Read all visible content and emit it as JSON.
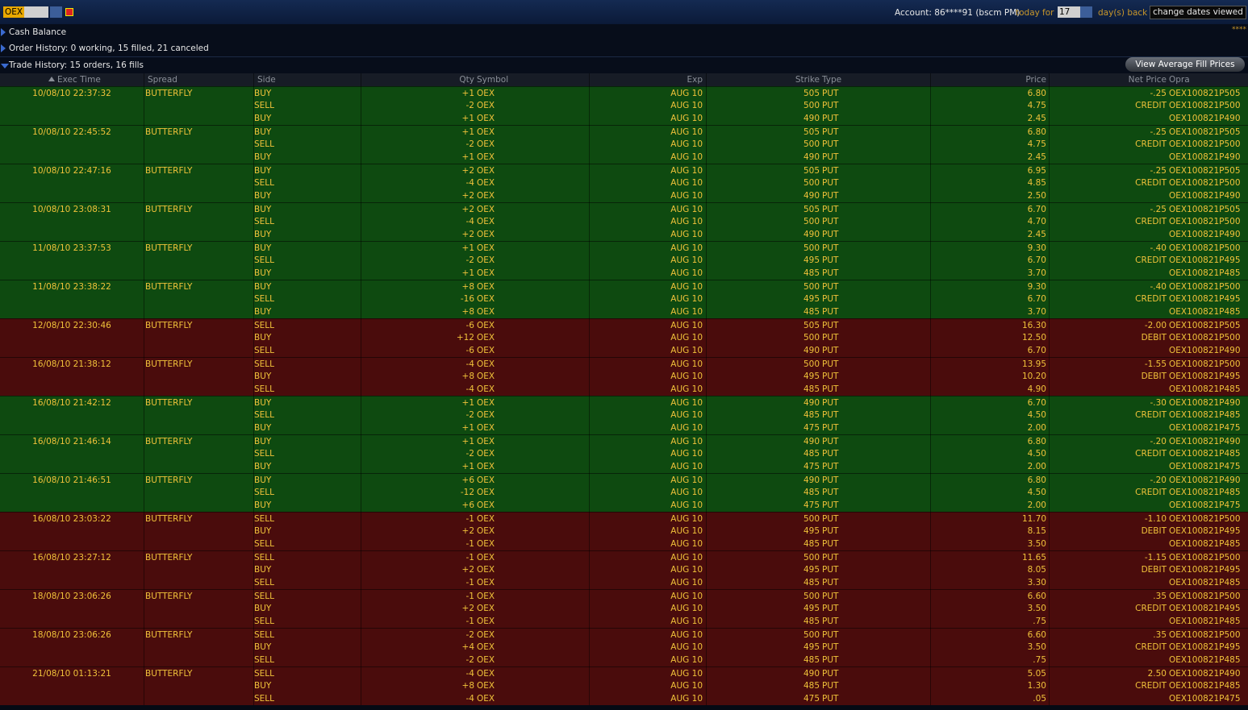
{
  "toolbar": {
    "symbol": "OEX",
    "account": "Account: 86****91 (bscm PM)",
    "today": "today",
    "for": "for",
    "days": "17",
    "days_back": "day(s) back",
    "change_dates": "change dates viewed"
  },
  "sections": {
    "cash_balance": "Cash Balance",
    "cash_mask": "****",
    "order_history": "Order History: 0 working, 15 filled, 21 canceled",
    "trade_history": "Trade History: 15 orders, 16 fills",
    "avg_button": "View Average Fill Prices"
  },
  "table": {
    "headers": {
      "time": "Exec Time",
      "spread": "Spread",
      "side": "Side",
      "qty": "Qty",
      "sym": "Symbol",
      "exp": "Exp",
      "strike": "Strike",
      "type": "Type",
      "price": "Price",
      "net": "Net Price",
      "opra": "Opra"
    },
    "orders": [
      {
        "time": "10/08/10 22:37:32",
        "spread": "BUTTERFLY",
        "color": "#0e4a10",
        "legs": [
          {
            "side": "BUY",
            "qty": "+1",
            "sym": "OEX",
            "exp": "AUG 10",
            "strike": "505",
            "type": "PUT",
            "price": "6.80",
            "net": "-.25",
            "opra": "OEX100821P505"
          },
          {
            "side": "SELL",
            "qty": "-2",
            "sym": "OEX",
            "exp": "AUG 10",
            "strike": "500",
            "type": "PUT",
            "price": "4.75",
            "net": "CREDIT",
            "opra": "OEX100821P500"
          },
          {
            "side": "BUY",
            "qty": "+1",
            "sym": "OEX",
            "exp": "AUG 10",
            "strike": "490",
            "type": "PUT",
            "price": "2.45",
            "opra": "OEX100821P490"
          }
        ]
      },
      {
        "time": "10/08/10 22:45:52",
        "spread": "BUTTERFLY",
        "color": "#0e4a10",
        "legs": [
          {
            "side": "BUY",
            "qty": "+1",
            "sym": "OEX",
            "exp": "AUG 10",
            "strike": "505",
            "type": "PUT",
            "price": "6.80",
            "net": "-.25",
            "opra": "OEX100821P505"
          },
          {
            "side": "SELL",
            "qty": "-2",
            "sym": "OEX",
            "exp": "AUG 10",
            "strike": "500",
            "type": "PUT",
            "price": "4.75",
            "net": "CREDIT",
            "opra": "OEX100821P500"
          },
          {
            "side": "BUY",
            "qty": "+1",
            "sym": "OEX",
            "exp": "AUG 10",
            "strike": "490",
            "type": "PUT",
            "price": "2.45",
            "opra": "OEX100821P490"
          }
        ]
      },
      {
        "time": "10/08/10 22:47:16",
        "spread": "BUTTERFLY",
        "color": "#0e4a10",
        "legs": [
          {
            "side": "BUY",
            "qty": "+2",
            "sym": "OEX",
            "exp": "AUG 10",
            "strike": "505",
            "type": "PUT",
            "price": "6.95",
            "net": "-.25",
            "opra": "OEX100821P505"
          },
          {
            "side": "SELL",
            "qty": "-4",
            "sym": "OEX",
            "exp": "AUG 10",
            "strike": "500",
            "type": "PUT",
            "price": "4.85",
            "net": "CREDIT",
            "opra": "OEX100821P500"
          },
          {
            "side": "BUY",
            "qty": "+2",
            "sym": "OEX",
            "exp": "AUG 10",
            "strike": "490",
            "type": "PUT",
            "price": "2.50",
            "opra": "OEX100821P490"
          }
        ]
      },
      {
        "time": "10/08/10 23:08:31",
        "spread": "BUTTERFLY",
        "color": "#0e4a10",
        "legs": [
          {
            "side": "BUY",
            "qty": "+2",
            "sym": "OEX",
            "exp": "AUG 10",
            "strike": "505",
            "type": "PUT",
            "price": "6.70",
            "net": "-.25",
            "opra": "OEX100821P505"
          },
          {
            "side": "SELL",
            "qty": "-4",
            "sym": "OEX",
            "exp": "AUG 10",
            "strike": "500",
            "type": "PUT",
            "price": "4.70",
            "net": "CREDIT",
            "opra": "OEX100821P500"
          },
          {
            "side": "BUY",
            "qty": "+2",
            "sym": "OEX",
            "exp": "AUG 10",
            "strike": "490",
            "type": "PUT",
            "price": "2.45",
            "opra": "OEX100821P490"
          }
        ]
      },
      {
        "time": "11/08/10 23:37:53",
        "spread": "BUTTERFLY",
        "color": "#0e4a10",
        "legs": [
          {
            "side": "BUY",
            "qty": "+1",
            "sym": "OEX",
            "exp": "AUG 10",
            "strike": "500",
            "type": "PUT",
            "price": "9.30",
            "net": "-.40",
            "opra": "OEX100821P500"
          },
          {
            "side": "SELL",
            "qty": "-2",
            "sym": "OEX",
            "exp": "AUG 10",
            "strike": "495",
            "type": "PUT",
            "price": "6.70",
            "net": "CREDIT",
            "opra": "OEX100821P495"
          },
          {
            "side": "BUY",
            "qty": "+1",
            "sym": "OEX",
            "exp": "AUG 10",
            "strike": "485",
            "type": "PUT",
            "price": "3.70",
            "opra": "OEX100821P485"
          }
        ]
      },
      {
        "time": "11/08/10 23:38:22",
        "spread": "BUTTERFLY",
        "color": "#0e4a10",
        "legs": [
          {
            "side": "BUY",
            "qty": "+8",
            "sym": "OEX",
            "exp": "AUG 10",
            "strike": "500",
            "type": "PUT",
            "price": "9.30",
            "net": "-.40",
            "opra": "OEX100821P500"
          },
          {
            "side": "SELL",
            "qty": "-16",
            "sym": "OEX",
            "exp": "AUG 10",
            "strike": "495",
            "type": "PUT",
            "price": "6.70",
            "net": "CREDIT",
            "opra": "OEX100821P495"
          },
          {
            "side": "BUY",
            "qty": "+8",
            "sym": "OEX",
            "exp": "AUG 10",
            "strike": "485",
            "type": "PUT",
            "price": "3.70",
            "opra": "OEX100821P485"
          }
        ]
      },
      {
        "time": "12/08/10 22:30:46",
        "spread": "BUTTERFLY",
        "color": "#4a0c0c",
        "legs": [
          {
            "side": "SELL",
            "qty": "-6",
            "sym": "OEX",
            "exp": "AUG 10",
            "strike": "505",
            "type": "PUT",
            "price": "16.30",
            "net": "-2.00",
            "opra": "OEX100821P505"
          },
          {
            "side": "BUY",
            "qty": "+12",
            "sym": "OEX",
            "exp": "AUG 10",
            "strike": "500",
            "type": "PUT",
            "price": "12.50",
            "net": "DEBIT",
            "opra": "OEX100821P500"
          },
          {
            "side": "SELL",
            "qty": "-6",
            "sym": "OEX",
            "exp": "AUG 10",
            "strike": "490",
            "type": "PUT",
            "price": "6.70",
            "opra": "OEX100821P490"
          }
        ]
      },
      {
        "time": "16/08/10 21:38:12",
        "spread": "BUTTERFLY",
        "color": "#4a0c0c",
        "legs": [
          {
            "side": "SELL",
            "qty": "-4",
            "sym": "OEX",
            "exp": "AUG 10",
            "strike": "500",
            "type": "PUT",
            "price": "13.95",
            "net": "-1.55",
            "opra": "OEX100821P500"
          },
          {
            "side": "BUY",
            "qty": "+8",
            "sym": "OEX",
            "exp": "AUG 10",
            "strike": "495",
            "type": "PUT",
            "price": "10.20",
            "net": "DEBIT",
            "opra": "OEX100821P495"
          },
          {
            "side": "SELL",
            "qty": "-4",
            "sym": "OEX",
            "exp": "AUG 10",
            "strike": "485",
            "type": "PUT",
            "price": "4.90",
            "opra": "OEX100821P485"
          }
        ]
      },
      {
        "time": "16/08/10 21:42:12",
        "spread": "BUTTERFLY",
        "color": "#0e4a10",
        "legs": [
          {
            "side": "BUY",
            "qty": "+1",
            "sym": "OEX",
            "exp": "AUG 10",
            "strike": "490",
            "type": "PUT",
            "price": "6.70",
            "net": "-.30",
            "opra": "OEX100821P490"
          },
          {
            "side": "SELL",
            "qty": "-2",
            "sym": "OEX",
            "exp": "AUG 10",
            "strike": "485",
            "type": "PUT",
            "price": "4.50",
            "net": "CREDIT",
            "opra": "OEX100821P485"
          },
          {
            "side": "BUY",
            "qty": "+1",
            "sym": "OEX",
            "exp": "AUG 10",
            "strike": "475",
            "type": "PUT",
            "price": "2.00",
            "opra": "OEX100821P475"
          }
        ]
      },
      {
        "time": "16/08/10 21:46:14",
        "spread": "BUTTERFLY",
        "color": "#0e4a10",
        "legs": [
          {
            "side": "BUY",
            "qty": "+1",
            "sym": "OEX",
            "exp": "AUG 10",
            "strike": "490",
            "type": "PUT",
            "price": "6.80",
            "net": "-.20",
            "opra": "OEX100821P490"
          },
          {
            "side": "SELL",
            "qty": "-2",
            "sym": "OEX",
            "exp": "AUG 10",
            "strike": "485",
            "type": "PUT",
            "price": "4.50",
            "net": "CREDIT",
            "opra": "OEX100821P485"
          },
          {
            "side": "BUY",
            "qty": "+1",
            "sym": "OEX",
            "exp": "AUG 10",
            "strike": "475",
            "type": "PUT",
            "price": "2.00",
            "opra": "OEX100821P475"
          }
        ]
      },
      {
        "time": "16/08/10 21:46:51",
        "spread": "BUTTERFLY",
        "color": "#0e4a10",
        "legs": [
          {
            "side": "BUY",
            "qty": "+6",
            "sym": "OEX",
            "exp": "AUG 10",
            "strike": "490",
            "type": "PUT",
            "price": "6.80",
            "net": "-.20",
            "opra": "OEX100821P490"
          },
          {
            "side": "SELL",
            "qty": "-12",
            "sym": "OEX",
            "exp": "AUG 10",
            "strike": "485",
            "type": "PUT",
            "price": "4.50",
            "net": "CREDIT",
            "opra": "OEX100821P485"
          },
          {
            "side": "BUY",
            "qty": "+6",
            "sym": "OEX",
            "exp": "AUG 10",
            "strike": "475",
            "type": "PUT",
            "price": "2.00",
            "opra": "OEX100821P475"
          }
        ]
      },
      {
        "time": "16/08/10 23:03:22",
        "spread": "BUTTERFLY",
        "color": "#4a0c0c",
        "legs": [
          {
            "side": "SELL",
            "qty": "-1",
            "sym": "OEX",
            "exp": "AUG 10",
            "strike": "500",
            "type": "PUT",
            "price": "11.70",
            "net": "-1.10",
            "opra": "OEX100821P500"
          },
          {
            "side": "BUY",
            "qty": "+2",
            "sym": "OEX",
            "exp": "AUG 10",
            "strike": "495",
            "type": "PUT",
            "price": "8.15",
            "net": "DEBIT",
            "opra": "OEX100821P495"
          },
          {
            "side": "SELL",
            "qty": "-1",
            "sym": "OEX",
            "exp": "AUG 10",
            "strike": "485",
            "type": "PUT",
            "price": "3.50",
            "opra": "OEX100821P485"
          }
        ]
      },
      {
        "time": "16/08/10 23:27:12",
        "spread": "BUTTERFLY",
        "color": "#4a0c0c",
        "legs": [
          {
            "side": "SELL",
            "qty": "-1",
            "sym": "OEX",
            "exp": "AUG 10",
            "strike": "500",
            "type": "PUT",
            "price": "11.65",
            "net": "-1.15",
            "opra": "OEX100821P500"
          },
          {
            "side": "BUY",
            "qty": "+2",
            "sym": "OEX",
            "exp": "AUG 10",
            "strike": "495",
            "type": "PUT",
            "price": "8.05",
            "net": "DEBIT",
            "opra": "OEX100821P495"
          },
          {
            "side": "SELL",
            "qty": "-1",
            "sym": "OEX",
            "exp": "AUG 10",
            "strike": "485",
            "type": "PUT",
            "price": "3.30",
            "opra": "OEX100821P485"
          }
        ]
      },
      {
        "time": "18/08/10 23:06:26",
        "spread": "BUTTERFLY",
        "color": "#4a0c0c",
        "legs": [
          {
            "side": "SELL",
            "qty": "-1",
            "sym": "OEX",
            "exp": "AUG 10",
            "strike": "500",
            "type": "PUT",
            "price": "6.60",
            "net": ".35",
            "opra": "OEX100821P500"
          },
          {
            "side": "BUY",
            "qty": "+2",
            "sym": "OEX",
            "exp": "AUG 10",
            "strike": "495",
            "type": "PUT",
            "price": "3.50",
            "net": "CREDIT",
            "opra": "OEX100821P495"
          },
          {
            "side": "SELL",
            "qty": "-1",
            "sym": "OEX",
            "exp": "AUG 10",
            "strike": "485",
            "type": "PUT",
            "price": ".75",
            "opra": "OEX100821P485"
          }
        ]
      },
      {
        "time": "18/08/10 23:06:26",
        "spread": "BUTTERFLY",
        "color": "#4a0c0c",
        "legs": [
          {
            "side": "SELL",
            "qty": "-2",
            "sym": "OEX",
            "exp": "AUG 10",
            "strike": "500",
            "type": "PUT",
            "price": "6.60",
            "net": ".35",
            "opra": "OEX100821P500"
          },
          {
            "side": "BUY",
            "qty": "+4",
            "sym": "OEX",
            "exp": "AUG 10",
            "strike": "495",
            "type": "PUT",
            "price": "3.50",
            "net": "CREDIT",
            "opra": "OEX100821P495"
          },
          {
            "side": "SELL",
            "qty": "-2",
            "sym": "OEX",
            "exp": "AUG 10",
            "strike": "485",
            "type": "PUT",
            "price": ".75",
            "opra": "OEX100821P485"
          }
        ]
      },
      {
        "time": "21/08/10 01:13:21",
        "spread": "BUTTERFLY",
        "color": "#4a0c0c",
        "legs": [
          {
            "side": "SELL",
            "qty": "-4",
            "sym": "OEX",
            "exp": "AUG 10",
            "strike": "490",
            "type": "PUT",
            "price": "5.05",
            "net": "2.50",
            "opra": "OEX100821P490"
          },
          {
            "side": "BUY",
            "qty": "+8",
            "sym": "OEX",
            "exp": "AUG 10",
            "strike": "485",
            "type": "PUT",
            "price": "1.30",
            "net": "CREDIT",
            "opra": "OEX100821P485"
          },
          {
            "side": "SELL",
            "qty": "-4",
            "sym": "OEX",
            "exp": "AUG 10",
            "strike": "475",
            "type": "PUT",
            "price": ".05",
            "opra": "OEX100821P475"
          }
        ]
      }
    ]
  }
}
